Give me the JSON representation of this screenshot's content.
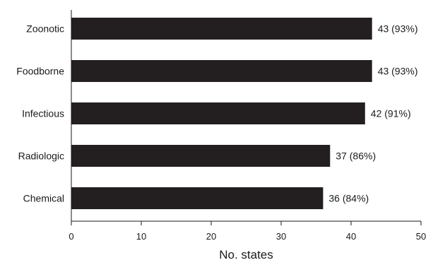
{
  "chart_data": {
    "type": "bar",
    "orientation": "horizontal",
    "categories": [
      "Zoonotic",
      "Foodborne",
      "Infectious",
      "Radiologic",
      "Chemical"
    ],
    "values": [
      43,
      43,
      42,
      37,
      36
    ],
    "data_labels": [
      "43 (93%)",
      "43 (93%)",
      "42 (91%)",
      "37 (86%)",
      "36 (84%)"
    ],
    "title": "",
    "xlabel": "No. states",
    "ylabel": "",
    "xlim": [
      0,
      50
    ],
    "xticks": [
      0,
      10,
      20,
      30,
      40,
      50
    ],
    "grid": false,
    "bar_color": "#231f20"
  }
}
